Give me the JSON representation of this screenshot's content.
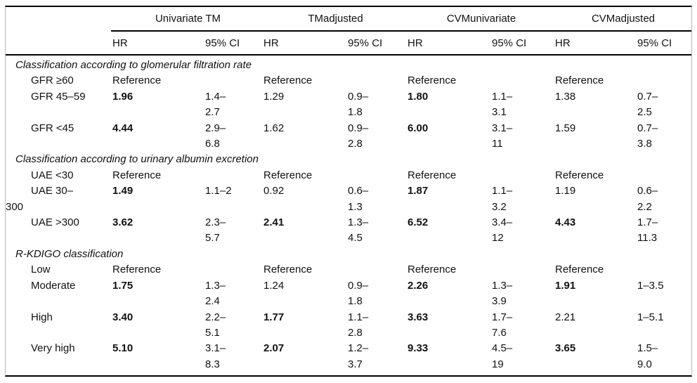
{
  "header": {
    "groups": [
      "Univariate TM",
      "TMadjusted",
      "CVMunivariate",
      "CVMadjusted"
    ],
    "subcolumns": [
      "HR",
      "95% CI",
      "HR",
      "95% CI",
      "HR",
      "95% CI",
      "HR",
      "95% CI"
    ]
  },
  "rows": [
    {
      "type": "section",
      "label": "Classification according to glomerular filtration rate"
    },
    {
      "type": "data",
      "label": "GFR ≥60",
      "cells": [
        {
          "text": "Reference"
        },
        {
          "text": ""
        },
        {
          "text": "Reference"
        },
        {
          "text": ""
        },
        {
          "text": "Reference"
        },
        {
          "text": ""
        },
        {
          "text": "Reference"
        },
        {
          "text": ""
        }
      ]
    },
    {
      "type": "data",
      "label": "GFR 45–59",
      "cells": [
        {
          "text": "1.96",
          "bold": true
        },
        {
          "text": "1.4–\n2.7"
        },
        {
          "text": "1.29"
        },
        {
          "text": "0.9–\n1.8"
        },
        {
          "text": "1.80",
          "bold": true
        },
        {
          "text": "1.1–\n3.1"
        },
        {
          "text": "1.38"
        },
        {
          "text": "0.7–\n2.5"
        }
      ]
    },
    {
      "type": "data",
      "label": "GFR <45",
      "cells": [
        {
          "text": "4.44",
          "bold": true
        },
        {
          "text": "2.9–\n6.8"
        },
        {
          "text": "1.62"
        },
        {
          "text": "0.9–\n2.8"
        },
        {
          "text": "6.00",
          "bold": true
        },
        {
          "text": "3.1–\n11"
        },
        {
          "text": "1.59"
        },
        {
          "text": "0.7–\n3.8"
        }
      ]
    },
    {
      "type": "section",
      "label": "Classification according to urinary albumin excretion"
    },
    {
      "type": "data",
      "label": "UAE <30",
      "cells": [
        {
          "text": "Reference"
        },
        {
          "text": ""
        },
        {
          "text": "Reference"
        },
        {
          "text": ""
        },
        {
          "text": "Reference"
        },
        {
          "text": ""
        },
        {
          "text": "Reference"
        },
        {
          "text": ""
        }
      ]
    },
    {
      "type": "data",
      "label": "UAE 30–\n300",
      "cells": [
        {
          "text": "1.49",
          "bold": true
        },
        {
          "text": "1.1–2"
        },
        {
          "text": "0.92"
        },
        {
          "text": "0.6–\n1.3"
        },
        {
          "text": "1.87",
          "bold": true
        },
        {
          "text": "1.1–\n3.2"
        },
        {
          "text": "1.19"
        },
        {
          "text": "0.6–\n2.2"
        }
      ]
    },
    {
      "type": "data",
      "label": "UAE >300",
      "cells": [
        {
          "text": "3.62",
          "bold": true
        },
        {
          "text": "2.3–\n5.7"
        },
        {
          "text": "2.41",
          "bold": true
        },
        {
          "text": "1.3–\n4.5"
        },
        {
          "text": "6.52",
          "bold": true
        },
        {
          "text": "3.4–\n12"
        },
        {
          "text": "4.43",
          "bold": true
        },
        {
          "text": "1.7–\n11.3"
        }
      ]
    },
    {
      "type": "section",
      "label": "R-KDIGO classification"
    },
    {
      "type": "data",
      "label": "Low",
      "cells": [
        {
          "text": "Reference"
        },
        {
          "text": ""
        },
        {
          "text": "Reference"
        },
        {
          "text": ""
        },
        {
          "text": "Reference"
        },
        {
          "text": ""
        },
        {
          "text": "Reference"
        },
        {
          "text": ""
        }
      ]
    },
    {
      "type": "data",
      "label": "Moderate",
      "cells": [
        {
          "text": "1.75",
          "bold": true
        },
        {
          "text": "1.3–\n2.4"
        },
        {
          "text": "1.24"
        },
        {
          "text": "0.9–\n1.8"
        },
        {
          "text": "2.26",
          "bold": true
        },
        {
          "text": "1.3–\n3.9"
        },
        {
          "text": "1.91",
          "bold": true
        },
        {
          "text": "1–3.5"
        }
      ]
    },
    {
      "type": "data",
      "label": "High",
      "cells": [
        {
          "text": "3.40",
          "bold": true
        },
        {
          "text": "2.2–\n5.1"
        },
        {
          "text": "1.77",
          "bold": true
        },
        {
          "text": "1.1–\n2.8"
        },
        {
          "text": "3.63",
          "bold": true
        },
        {
          "text": "1.7–\n7.6"
        },
        {
          "text": "2.21"
        },
        {
          "text": "1–5.1"
        }
      ]
    },
    {
      "type": "data",
      "label": "Very high",
      "cells": [
        {
          "text": "5.10",
          "bold": true
        },
        {
          "text": "3.1–\n8.3"
        },
        {
          "text": "2.07",
          "bold": true
        },
        {
          "text": "1.2–\n3.7"
        },
        {
          "text": "9.33",
          "bold": true
        },
        {
          "text": "4.5–\n19"
        },
        {
          "text": "3.65",
          "bold": true
        },
        {
          "text": "1.5–\n9.0"
        }
      ]
    }
  ],
  "colors": {
    "rule": "#000000",
    "side_border": "#b7b7b7",
    "text": "#111111"
  }
}
